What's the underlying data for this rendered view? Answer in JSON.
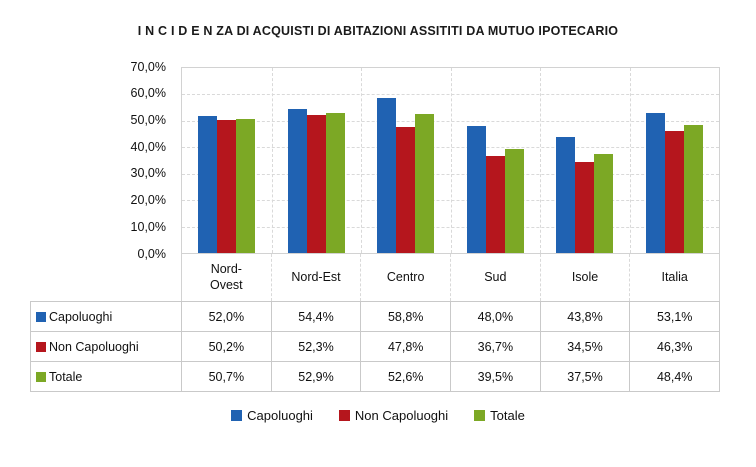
{
  "chart_data": {
    "type": "bar",
    "title": "I N C I D E N ZA  DI ACQUISTI DI ABITAZIONI ASSITITI DA MUTUO IPOTECARIO",
    "categories": [
      "Nord-Ovest",
      "Nord-Est",
      "Centro",
      "Sud",
      "Isole",
      "Italia"
    ],
    "categories_display": [
      "Nord-\nOvest",
      "Nord-Est",
      "Centro",
      "Sud",
      "Isole",
      "Italia"
    ],
    "series": [
      {
        "name": "Capoluoghi",
        "color": "#2062b2",
        "values": [
          52.0,
          54.4,
          58.8,
          48.0,
          43.8,
          53.1
        ]
      },
      {
        "name": "Non Capoluoghi",
        "color": "#b5161d",
        "values": [
          50.2,
          52.3,
          47.8,
          36.7,
          34.5,
          46.3
        ]
      },
      {
        "name": "Totale",
        "color": "#7ca825",
        "values": [
          50.7,
          52.9,
          52.6,
          39.5,
          37.5,
          48.4
        ]
      }
    ],
    "table_values": [
      [
        "52,0%",
        "54,4%",
        "58,8%",
        "48,0%",
        "43,8%",
        "53,1%"
      ],
      [
        "50,2%",
        "52,3%",
        "47,8%",
        "36,7%",
        "34,5%",
        "46,3%"
      ],
      [
        "50,7%",
        "52,9%",
        "52,6%",
        "39,5%",
        "37,5%",
        "48,4%"
      ]
    ],
    "xlabel": "",
    "ylabel": "",
    "ylim": [
      0,
      70
    ],
    "y_tick_step": 10,
    "y_tick_labels_desc": [
      "70,0%",
      "60,0%",
      "50,0%",
      "40,0%",
      "30,0%",
      "20,0%",
      "10,0%",
      "0,0%"
    ],
    "grid": true,
    "legend_position": "bottom"
  },
  "legend": {
    "items": [
      {
        "label": "Capoluoghi",
        "color": "#2062b2"
      },
      {
        "label": "Non Capoluoghi",
        "color": "#b5161d"
      },
      {
        "label": "Totale",
        "color": "#7ca825"
      }
    ]
  },
  "colors": {
    "gridline": "#d9d9d9",
    "plot_border": "#d2d2d2",
    "table_border": "#c9c9c9",
    "background": "#ffffff",
    "text": "#111111"
  }
}
